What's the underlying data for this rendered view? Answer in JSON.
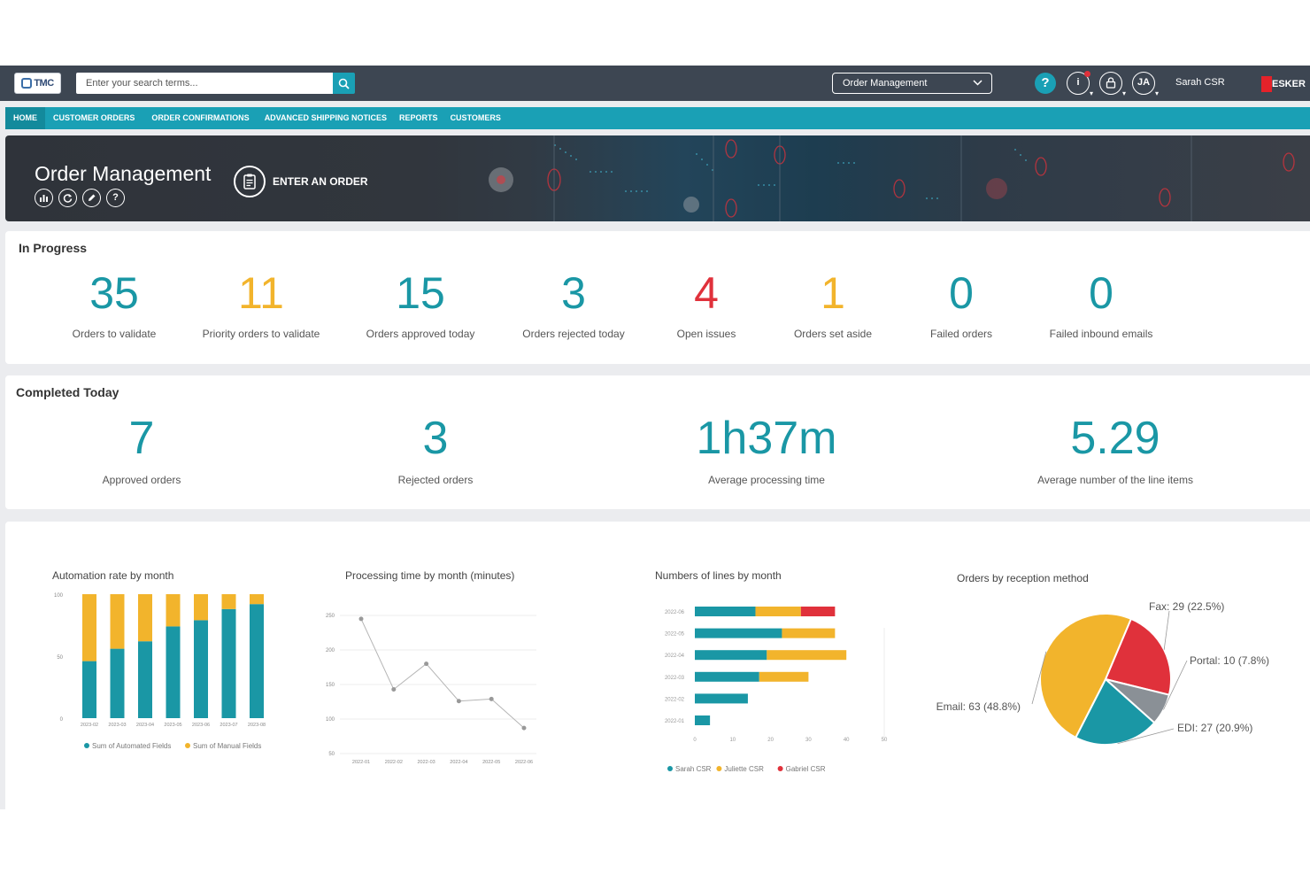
{
  "colors": {
    "teal": "#1a97a5",
    "yellow": "#f2b42c",
    "red": "#e0313b",
    "gray": "#8a9096",
    "accent": "#1aa0b5"
  },
  "topbar": {
    "logo_text": "TMC",
    "search_placeholder": "Enter your search terms...",
    "app_select": "Order Management",
    "help": "?",
    "notif_icon_text": "i",
    "user_initials": "JA",
    "user_name": "Sarah CSR",
    "brand": "ESKER"
  },
  "nav": {
    "items": [
      {
        "label": "HOME",
        "active": true
      },
      {
        "label": "CUSTOMER ORDERS"
      },
      {
        "label": "ORDER CONFIRMATIONS"
      },
      {
        "label": "ADVANCED SHIPPING NOTICES"
      },
      {
        "label": "REPORTS"
      },
      {
        "label": "CUSTOMERS"
      }
    ]
  },
  "banner": {
    "title": "Order Management",
    "enter_order": "ENTER AN ORDER",
    "help_icon": "?"
  },
  "in_progress": {
    "title": "In Progress",
    "stats": [
      {
        "value": "35",
        "label": "Orders to validate",
        "color": "#1a97a5"
      },
      {
        "value": "11",
        "label": "Priority orders to validate",
        "color": "#f2b42c"
      },
      {
        "value": "15",
        "label": "Orders approved today",
        "color": "#1a97a5"
      },
      {
        "value": "3",
        "label": "Orders rejected today",
        "color": "#1a97a5"
      },
      {
        "value": "4",
        "label": "Open issues",
        "color": "#e0313b"
      },
      {
        "value": "1",
        "label": "Orders set aside",
        "color": "#f2b42c"
      },
      {
        "value": "0",
        "label": "Failed orders",
        "color": "#1a97a5"
      },
      {
        "value": "0",
        "label": "Failed inbound emails",
        "color": "#1a97a5"
      }
    ]
  },
  "completed_today": {
    "title": "Completed Today",
    "stats": [
      {
        "value": "7",
        "label": "Approved orders"
      },
      {
        "value": "3",
        "label": "Rejected orders"
      },
      {
        "value": "1h37m",
        "label": "Average processing time"
      },
      {
        "value": "5.29",
        "label": "Average number of the line items"
      }
    ]
  },
  "chart_data": [
    {
      "type": "bar",
      "stacked": true,
      "title": "Automation rate by month",
      "categories": [
        "2023-02",
        "2023-03",
        "2023-04",
        "2023-05",
        "2023-06",
        "2023-07",
        "2023-08"
      ],
      "series": [
        {
          "name": "Sum of Automated Fields",
          "values": [
            46,
            56,
            62,
            74,
            79,
            88,
            92
          ]
        },
        {
          "name": "Sum of Manual Fields",
          "values": [
            54,
            44,
            38,
            26,
            21,
            12,
            8
          ]
        }
      ],
      "yticks": [
        "0",
        "50",
        "100"
      ],
      "ylim": [
        0,
        100
      ],
      "legend": "bottom"
    },
    {
      "type": "line",
      "title": "Processing time by month (minutes)",
      "categories": [
        "2022-01",
        "2022-02",
        "2022-03",
        "2022-04",
        "2022-05",
        "2022-06"
      ],
      "values": [
        245,
        143,
        180,
        126,
        129,
        87
      ],
      "yticks": [
        "50",
        "100",
        "150",
        "200",
        "250"
      ],
      "ylim": [
        50,
        250
      ]
    },
    {
      "type": "bar",
      "orientation": "horizontal",
      "stacked": true,
      "title": "Numbers of lines by month",
      "categories": [
        "2022-06",
        "2022-05",
        "2022-04",
        "2022-03",
        "2022-02",
        "2022-01"
      ],
      "series": [
        {
          "name": "Sarah CSR",
          "values": [
            16,
            23,
            19,
            17,
            14,
            4
          ]
        },
        {
          "name": "Juliette CSR",
          "values": [
            12,
            14,
            21,
            13,
            0,
            0
          ]
        },
        {
          "name": "Gabriel CSR",
          "values": [
            9,
            0,
            0,
            0,
            0,
            0
          ]
        }
      ],
      "xticks": [
        "0",
        "10",
        "20",
        "30",
        "40",
        "50"
      ],
      "xlim": [
        0,
        50
      ],
      "legend": "bottom"
    },
    {
      "type": "pie",
      "title": "Orders by reception method",
      "slices": [
        {
          "label": "Fax: 29 (22.5%)",
          "value": 29
        },
        {
          "label": "Portal: 10 (7.8%)",
          "value": 10
        },
        {
          "label": "EDI: 27 (20.9%)",
          "value": 27
        },
        {
          "label": "Email: 63 (48.8%)",
          "value": 63
        }
      ]
    }
  ]
}
